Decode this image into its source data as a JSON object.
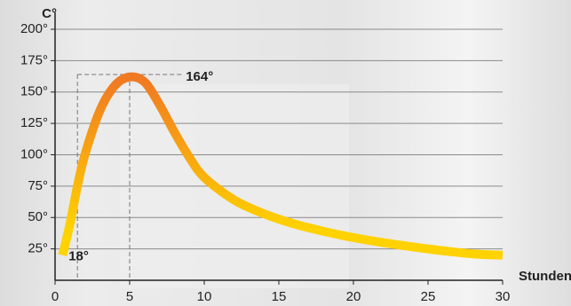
{
  "chart_data": {
    "type": "line",
    "y_label": "C°",
    "x_label": "Stunden",
    "x": [
      0.5,
      1,
      1.5,
      2,
      3,
      4,
      5,
      6,
      7,
      8,
      9,
      10,
      12,
      14,
      16,
      18,
      20,
      22,
      25,
      28,
      30
    ],
    "values": [
      20,
      45,
      75,
      100,
      135,
      155,
      162,
      158,
      140,
      118,
      98,
      82,
      64,
      53,
      45,
      39,
      34,
      30,
      25,
      21,
      20
    ],
    "color_top": "#f07a22",
    "color_bottom": "#ffd200",
    "xlim": [
      0,
      30
    ],
    "xticks": [
      0,
      5,
      10,
      15,
      20,
      25,
      30
    ],
    "ylim": [
      0,
      200
    ],
    "yticks": [
      {
        "value": 25,
        "label": "25°"
      },
      {
        "value": 50,
        "label": "50°"
      },
      {
        "value": 75,
        "label": "75°"
      },
      {
        "value": 100,
        "label": "100°"
      },
      {
        "value": 125,
        "label": "125°"
      },
      {
        "value": 150,
        "label": "150°"
      },
      {
        "value": 175,
        "label": "175°"
      },
      {
        "value": 200,
        "label": "200°"
      }
    ],
    "grid": true,
    "annotations": [
      {
        "text": "164°",
        "value": 164,
        "x": 5,
        "color": "#f07a22"
      },
      {
        "text": "18°",
        "value": 18,
        "x": 1.5,
        "color": "#ffd200"
      }
    ]
  }
}
